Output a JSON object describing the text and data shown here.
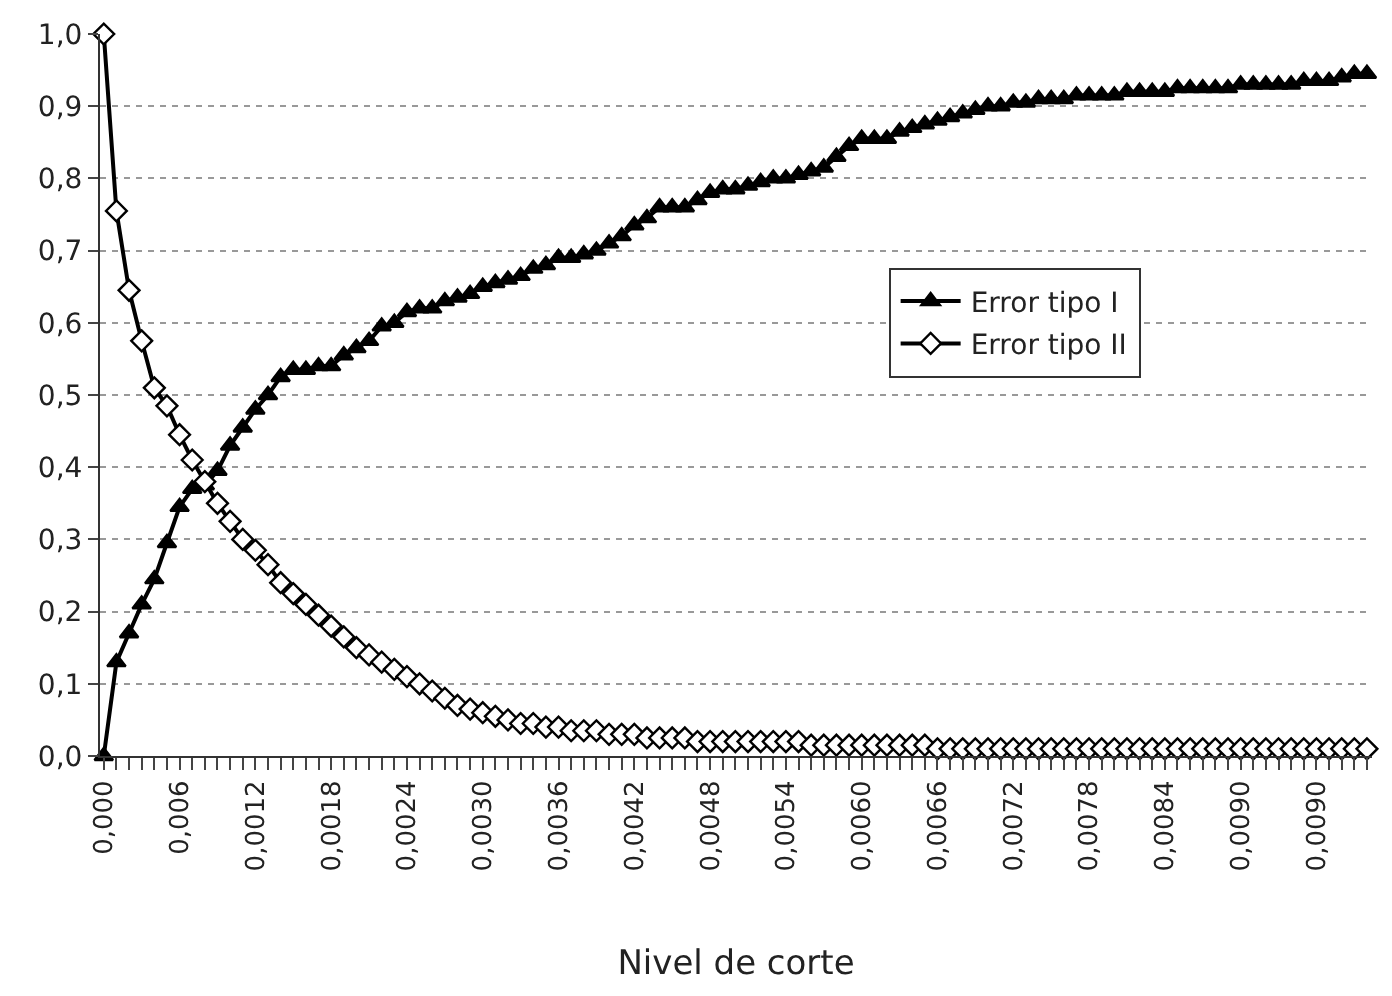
{
  "chart_data": {
    "type": "line",
    "xlabel": "Nivel de corte",
    "categories": [
      "0,000",
      null,
      null,
      null,
      null,
      null,
      "0,006",
      null,
      null,
      null,
      null,
      null,
      "0,0012",
      null,
      null,
      null,
      null,
      null,
      "0,0018",
      null,
      null,
      null,
      null,
      null,
      "0,0024",
      null,
      null,
      null,
      null,
      null,
      "0,0030",
      null,
      null,
      null,
      null,
      null,
      "0,0036",
      null,
      null,
      null,
      null,
      null,
      "0,0042",
      null,
      null,
      null,
      null,
      null,
      "0,0048",
      null,
      null,
      null,
      null,
      null,
      "0,0054",
      null,
      null,
      null,
      null,
      null,
      "0,0060",
      null,
      null,
      null,
      null,
      null,
      "0,0066",
      null,
      null,
      null,
      null,
      null,
      "0,0072",
      null,
      null,
      null,
      null,
      null,
      "0,0078",
      null,
      null,
      null,
      null,
      null,
      "0,0084",
      null,
      null,
      null,
      null,
      null,
      "0,0090",
      null,
      null,
      null,
      null,
      null,
      "0,0090",
      null,
      null,
      null,
      null
    ],
    "series": [
      {
        "name": "Error tipo I",
        "color": "#000000",
        "marker": "triangle",
        "values": [
          0,
          0.13,
          0.17,
          0.21,
          0.245,
          0.295,
          0.345,
          0.37,
          0.375,
          0.395,
          0.43,
          0.455,
          0.48,
          0.5,
          0.525,
          0.535,
          0.535,
          0.54,
          0.54,
          0.555,
          0.565,
          0.575,
          0.595,
          0.6,
          0.615,
          0.62,
          0.62,
          0.63,
          0.635,
          0.64,
          0.65,
          0.655,
          0.66,
          0.665,
          0.675,
          0.68,
          0.69,
          0.69,
          0.695,
          0.7,
          0.71,
          0.72,
          0.735,
          0.745,
          0.76,
          0.76,
          0.76,
          0.77,
          0.78,
          0.785,
          0.785,
          0.79,
          0.795,
          0.8,
          0.8,
          0.805,
          0.81,
          0.815,
          0.83,
          0.845,
          0.855,
          0.855,
          0.855,
          0.865,
          0.87,
          0.875,
          0.88,
          0.885,
          0.89,
          0.895,
          0.9,
          0.9,
          0.905,
          0.905,
          0.91,
          0.91,
          0.91,
          0.915,
          0.915,
          0.915,
          0.915,
          0.92,
          0.92,
          0.92,
          0.92,
          0.925,
          0.925,
          0.925,
          0.925,
          0.925,
          0.93,
          0.93,
          0.93,
          0.93,
          0.93,
          0.935,
          0.935,
          0.935,
          0.94,
          0.945,
          0.945
        ]
      },
      {
        "name": "Error tipo II",
        "color": "#000000",
        "marker": "diamond",
        "values": [
          1.0,
          0.755,
          0.645,
          0.575,
          0.51,
          0.485,
          0.445,
          0.41,
          0.38,
          0.35,
          0.325,
          0.3,
          0.285,
          0.265,
          0.24,
          0.225,
          0.21,
          0.195,
          0.18,
          0.165,
          0.15,
          0.14,
          0.13,
          0.12,
          0.11,
          0.1,
          0.09,
          0.08,
          0.07,
          0.065,
          0.06,
          0.055,
          0.05,
          0.045,
          0.045,
          0.04,
          0.04,
          0.035,
          0.035,
          0.035,
          0.03,
          0.03,
          0.03,
          0.025,
          0.025,
          0.025,
          0.025,
          0.02,
          0.02,
          0.02,
          0.02,
          0.02,
          0.02,
          0.02,
          0.02,
          0.02,
          0.015,
          0.015,
          0.015,
          0.015,
          0.015,
          0.015,
          0.015,
          0.015,
          0.015,
          0.015,
          0.01,
          0.01,
          0.01,
          0.01,
          0.01,
          0.01,
          0.01,
          0.01,
          0.01,
          0.01,
          0.01,
          0.01,
          0.01,
          0.01,
          0.01,
          0.01,
          0.01,
          0.01,
          0.01,
          0.01,
          0.01,
          0.01,
          0.01,
          0.01,
          0.01,
          0.01,
          0.01,
          0.01,
          0.01,
          0.01,
          0.01,
          0.01,
          0.01,
          0.01,
          0.01
        ]
      }
    ],
    "ylim": [
      0,
      1.0
    ],
    "yticks": [
      {
        "value": 0,
        "label": "0,0"
      },
      {
        "value": 0.1,
        "label": "0,1"
      },
      {
        "value": 0.2,
        "label": "0,2"
      },
      {
        "value": 0.3,
        "label": "0,3"
      },
      {
        "value": 0.4,
        "label": "0,4"
      },
      {
        "value": 0.5,
        "label": "0,5"
      },
      {
        "value": 0.6,
        "label": "0,6"
      },
      {
        "value": 0.7,
        "label": "0,7"
      },
      {
        "value": 0.8,
        "label": "0,8"
      },
      {
        "value": 0.9,
        "label": "0,9"
      },
      {
        "value": 1.0,
        "label": "1,0"
      }
    ],
    "grid": "y",
    "legend": "right",
    "line_style": "solid"
  }
}
